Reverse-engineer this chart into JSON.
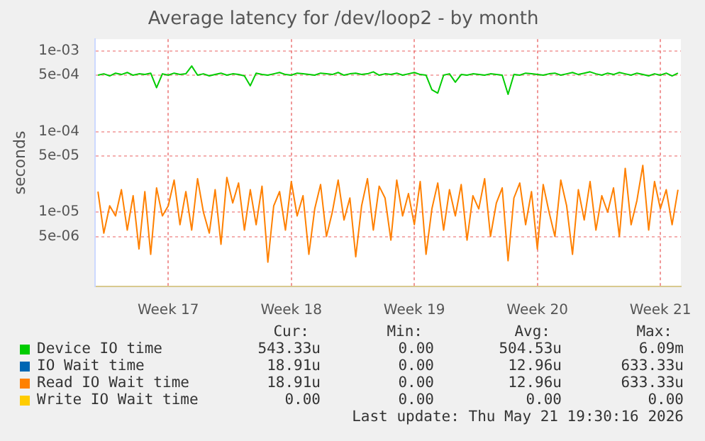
{
  "chart_data": {
    "type": "line",
    "title": "Average latency for /dev/loop2 - by month",
    "ylabel": "seconds",
    "log": "y",
    "grid": true,
    "legend": "bottom",
    "marker": "none",
    "line_style": "solid",
    "categories": [
      null,
      null,
      null,
      null,
      null,
      null,
      null,
      null,
      null,
      null,
      null,
      null,
      "Week 17",
      null,
      null,
      null,
      null,
      null,
      null,
      null,
      null,
      null,
      null,
      null,
      null,
      null,
      null,
      null,
      null,
      null,
      null,
      null,
      null,
      "Week 18",
      null,
      null,
      null,
      null,
      null,
      null,
      null,
      null,
      null,
      null,
      null,
      null,
      null,
      null,
      null,
      null,
      null,
      null,
      null,
      null,
      "Week 19",
      null,
      null,
      null,
      null,
      null,
      null,
      null,
      null,
      null,
      null,
      null,
      null,
      null,
      null,
      null,
      null,
      null,
      null,
      null,
      null,
      "Week 20",
      null,
      null,
      null,
      null,
      null,
      null,
      null,
      null,
      null,
      null,
      null,
      null,
      null,
      null,
      null,
      null,
      null,
      null,
      null,
      null,
      "Week 21",
      null,
      null,
      null
    ],
    "ylim": [
      1.2e-06,
      0.0014
    ],
    "yticks": [
      {
        "value": 5e-06,
        "label": "5e-06"
      },
      {
        "value": 1e-05,
        "label": "1e-05"
      },
      {
        "value": 5e-05,
        "label": "5e-05"
      },
      {
        "value": 0.0001,
        "label": "1e-04"
      },
      {
        "value": 0.0005,
        "label": "5e-04"
      },
      {
        "value": 0.001,
        "label": "1e-03"
      }
    ],
    "series": [
      {
        "name": "Device IO time",
        "color": "#00cc00",
        "values": [
          0.0005,
          0.00052,
          0.00049,
          0.00053,
          0.00051,
          0.00054,
          0.0005,
          0.00052,
          0.00051,
          0.00053,
          0.00035,
          0.00052,
          0.0005,
          0.00053,
          0.00051,
          0.00052,
          0.00065,
          0.0005,
          0.00052,
          0.00049,
          0.00051,
          0.00053,
          0.0005,
          0.00052,
          0.00051,
          0.00049,
          0.00037,
          0.00053,
          0.00051,
          0.0005,
          0.00052,
          0.00054,
          0.00051,
          0.0005,
          0.00053,
          0.00052,
          0.00051,
          0.0005,
          0.00053,
          0.00052,
          0.00051,
          0.00054,
          0.0005,
          0.00052,
          0.00053,
          0.00051,
          0.00052,
          0.00055,
          0.0005,
          0.00052,
          0.00051,
          0.00053,
          0.0005,
          0.00052,
          0.00054,
          0.00051,
          0.0005,
          0.00033,
          0.0003,
          0.0005,
          0.00052,
          0.00041,
          0.00051,
          0.0005,
          0.00052,
          0.00051,
          0.0005,
          0.00052,
          0.00051,
          0.0005,
          0.00029,
          0.00051,
          0.0005,
          0.00053,
          0.00052,
          0.00051,
          0.0005,
          0.00052,
          0.00053,
          0.0005,
          0.00052,
          0.00054,
          0.00051,
          0.00053,
          0.00055,
          0.00052,
          0.0005,
          0.00053,
          0.00051,
          0.00054,
          0.00052,
          0.0005,
          0.00053,
          0.00051,
          0.00049,
          0.00052,
          0.0005,
          0.00053,
          0.00049,
          0.00053
        ]
      },
      {
        "name": "IO Wait time",
        "color": "#0066b3",
        "values": [
          null,
          null,
          null,
          null,
          null,
          null,
          null,
          null,
          null,
          null,
          null,
          null,
          null,
          null,
          null,
          null,
          null,
          null,
          null,
          null,
          null,
          null,
          null,
          null,
          null,
          null,
          null,
          null,
          null,
          null,
          null,
          null,
          null,
          null,
          null,
          null,
          null,
          null,
          null,
          null,
          null,
          null,
          null,
          null,
          null,
          null,
          null,
          null,
          null,
          null,
          null,
          null,
          null,
          null,
          null,
          null,
          null,
          null,
          null,
          null,
          null,
          null,
          null,
          null,
          null,
          null,
          null,
          null,
          null,
          null,
          null,
          null,
          null,
          null,
          null,
          null,
          null,
          null,
          null,
          null,
          null,
          null,
          null,
          null,
          null,
          null,
          null,
          null,
          null,
          null,
          null,
          null,
          null,
          null,
          null,
          null,
          null,
          null,
          null,
          null
        ]
      },
      {
        "name": "Read IO Wait time",
        "color": "#ff8000",
        "values": [
          1.8e-05,
          5.5e-06,
          1.2e-05,
          9e-06,
          1.9e-05,
          6e-06,
          1.6e-05,
          3.5e-06,
          1.8e-05,
          3e-06,
          2e-05,
          9e-06,
          1.2e-05,
          2.5e-05,
          7e-06,
          1.8e-05,
          6e-06,
          2.6e-05,
          1e-05,
          5.5e-06,
          1.9e-05,
          4e-06,
          2.7e-05,
          1.3e-05,
          2.3e-05,
          6e-06,
          1.9e-05,
          7e-06,
          2.1e-05,
          2.4e-06,
          1.2e-05,
          1.8e-05,
          6e-06,
          2.4e-05,
          9e-06,
          1.6e-05,
          3e-06,
          1.1e-05,
          2.2e-05,
          5e-06,
          1e-05,
          2.5e-05,
          8e-06,
          1.5e-05,
          2.8e-06,
          1.2e-05,
          2.6e-05,
          6e-06,
          2.1e-05,
          1.5e-05,
          4.5e-06,
          2.5e-05,
          9e-06,
          1.7e-05,
          7e-06,
          2.4e-05,
          3e-06,
          1.1e-05,
          2.3e-05,
          6e-06,
          1.9e-05,
          9e-06,
          2.2e-05,
          4.5e-06,
          1.6e-05,
          1.1e-05,
          2.6e-05,
          5e-06,
          1.3e-05,
          2e-05,
          2.5e-06,
          1.5e-05,
          2.3e-05,
          7e-06,
          1.8e-05,
          3.5e-06,
          2.2e-05,
          1e-05,
          5e-06,
          2.5e-05,
          1.2e-05,
          3e-06,
          1.9e-05,
          8e-06,
          2.4e-05,
          6e-06,
          1.6e-05,
          1e-05,
          2e-05,
          5e-06,
          3.5e-05,
          7e-06,
          1.4e-05,
          3.8e-05,
          6e-06,
          2.4e-05,
          1.1e-05,
          1.9e-05,
          7e-06,
          1.9e-05
        ]
      },
      {
        "name": "Write IO Wait time",
        "color": "#ffcc00",
        "values": [
          null,
          null,
          null,
          null,
          null,
          null,
          null,
          null,
          null,
          null,
          null,
          null,
          null,
          null,
          null,
          null,
          null,
          null,
          null,
          null,
          null,
          null,
          null,
          null,
          null,
          null,
          null,
          null,
          null,
          null,
          null,
          null,
          null,
          null,
          null,
          null,
          null,
          null,
          null,
          null,
          null,
          null,
          null,
          null,
          null,
          null,
          null,
          null,
          null,
          null,
          null,
          null,
          null,
          null,
          null,
          null,
          null,
          null,
          null,
          null,
          null,
          null,
          null,
          null,
          null,
          null,
          null,
          null,
          null,
          null,
          null,
          null,
          null,
          null,
          null,
          null,
          null,
          null,
          null,
          null,
          null,
          null,
          null,
          null,
          null,
          null,
          null,
          null,
          null,
          null,
          null,
          null,
          null,
          null,
          null,
          null,
          null,
          null,
          null,
          null
        ]
      }
    ],
    "annotations": [
      "Cur:",
      "Min:",
      "Avg:",
      "Max:",
      "543.33u",
      "0.00",
      "504.53u",
      "6.09m",
      "18.91u",
      "0.00",
      "12.96u",
      "633.33u",
      "18.91u",
      "0.00",
      "12.96u",
      "633.33u",
      "0.00",
      "0.00",
      "0.00",
      "0.00",
      "Last update: Thu May 21 19:30:16 2026"
    ]
  }
}
